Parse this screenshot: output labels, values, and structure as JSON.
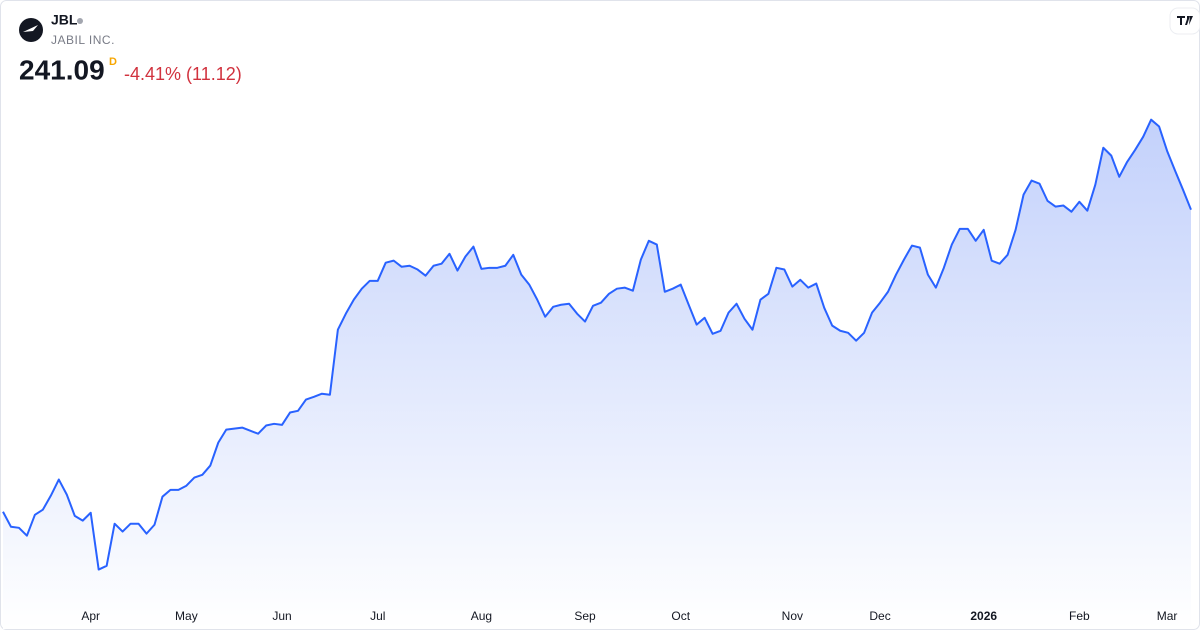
{
  "chart_data": {
    "type": "line",
    "ticker": "JBL",
    "company": "JABIL INC.",
    "price": 241.09,
    "interval": "D",
    "change": "-4.41% (11.12)",
    "categories": [
      null,
      null,
      null,
      null,
      null,
      null,
      null,
      null,
      null,
      null,
      null,
      "Apr",
      null,
      null,
      null,
      null,
      null,
      null,
      null,
      null,
      null,
      null,
      null,
      "May",
      null,
      null,
      null,
      null,
      null,
      null,
      null,
      null,
      null,
      null,
      null,
      "Jun",
      null,
      null,
      null,
      null,
      null,
      null,
      null,
      null,
      null,
      null,
      null,
      "Jul",
      null,
      null,
      null,
      null,
      null,
      null,
      null,
      null,
      null,
      null,
      null,
      null,
      "Aug",
      null,
      null,
      null,
      null,
      null,
      null,
      null,
      null,
      null,
      null,
      null,
      null,
      "Sep",
      null,
      null,
      null,
      null,
      null,
      null,
      null,
      null,
      null,
      null,
      null,
      "Oct",
      null,
      null,
      null,
      null,
      null,
      null,
      null,
      null,
      null,
      null,
      null,
      null,
      null,
      "Nov",
      null,
      null,
      null,
      null,
      null,
      null,
      null,
      null,
      null,
      null,
      "Dec",
      null,
      null,
      null,
      null,
      null,
      null,
      null,
      null,
      null,
      null,
      null,
      null,
      "2026",
      null,
      null,
      null,
      null,
      null,
      null,
      null,
      null,
      null,
      null,
      null,
      "Feb",
      null,
      null,
      null,
      null,
      null,
      null,
      null,
      null,
      null,
      null,
      "Mar",
      null,
      null,
      null
    ],
    "series": [
      {
        "name": "JBL",
        "color": "#2962ff",
        "values": [
          152.8,
          148.4,
          148.1,
          145.8,
          151.9,
          153.4,
          157.5,
          162.2,
          157.8,
          151.6,
          150.2,
          152.5,
          135.9,
          137.0,
          149.3,
          147.0,
          149.3,
          149.3,
          146.4,
          149.0,
          157.2,
          159.2,
          159.2,
          160.4,
          162.8,
          163.6,
          166.3,
          173.0,
          176.8,
          177.1,
          177.4,
          176.5,
          175.6,
          178.0,
          178.5,
          178.2,
          181.8,
          182.3,
          185.6,
          186.4,
          187.3,
          187.0,
          206.0,
          210.7,
          214.8,
          218.0,
          220.3,
          220.3,
          225.6,
          226.2,
          224.4,
          224.7,
          223.6,
          221.8,
          224.7,
          225.3,
          228.2,
          223.3,
          227.4,
          230.3,
          223.8,
          224.1,
          224.1,
          224.7,
          227.9,
          222.1,
          219.2,
          214.8,
          209.8,
          212.7,
          213.3,
          213.6,
          210.7,
          208.4,
          213.0,
          213.9,
          216.5,
          218.0,
          218.3,
          217.4,
          226.5,
          232.0,
          230.9,
          217.1,
          218.0,
          219.2,
          213.3,
          207.5,
          209.5,
          204.8,
          205.7,
          211.0,
          213.6,
          209.2,
          206.0,
          214.8,
          216.5,
          224.1,
          223.6,
          218.6,
          220.6,
          218.3,
          219.5,
          212.4,
          207.2,
          205.7,
          205.1,
          202.8,
          205.1,
          211.0,
          213.9,
          217.1,
          222.1,
          226.5,
          230.6,
          230.0,
          222.1,
          218.3,
          224.1,
          230.9,
          235.5,
          235.5,
          232.0,
          235.2,
          226.2,
          225.3,
          227.9,
          235.2,
          245.5,
          249.6,
          248.7,
          243.7,
          242.0,
          242.3,
          240.5,
          243.4,
          240.8,
          248.4,
          259.2,
          256.9,
          250.7,
          255.1,
          258.6,
          262.4,
          267.4,
          265.4,
          258.3,
          252.5,
          246.9,
          241.09
        ]
      }
    ],
    "ylim": [
      127,
      279
    ],
    "grid": false
  }
}
